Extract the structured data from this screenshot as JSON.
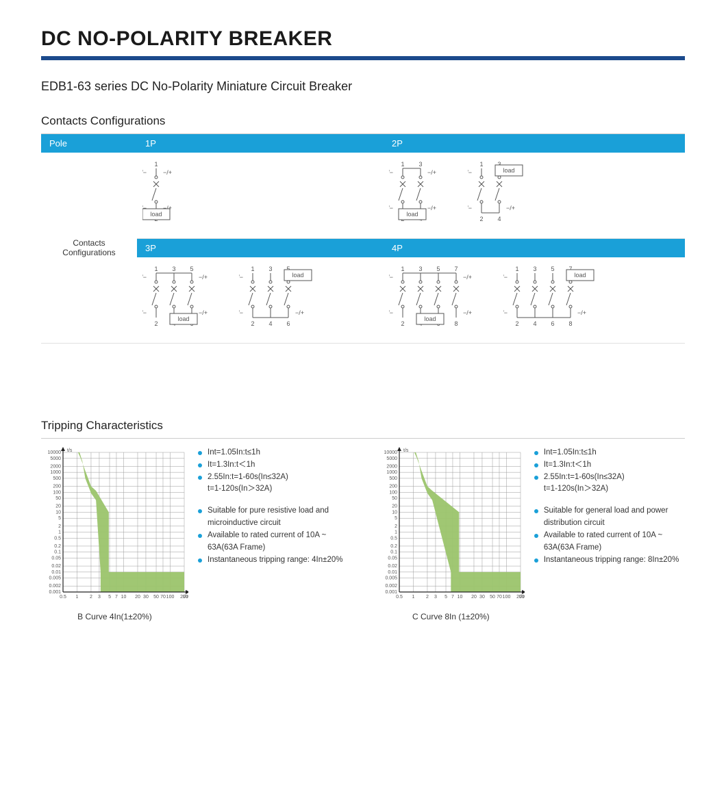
{
  "title": "DC NO-POLARITY BREAKER",
  "title_rule_color": "#1b4a8c",
  "subtitle": "EDB1-63 series DC No-Polarity  Miniature Circuit Breaker",
  "contacts": {
    "heading": "Contacts  Configurations",
    "header_bg": "#1aa0d8",
    "pole_label": "Pole",
    "row_label": "Contacts Configurations",
    "cols_top": [
      "1P",
      "2P"
    ],
    "cols_bot": [
      "3P",
      "4P"
    ],
    "load_label": "load",
    "plus_minus": "+/−",
    "minus_plus": "−/+",
    "diagrams": {
      "1P": {
        "poles": 1,
        "variants": 1
      },
      "2P": {
        "poles": 2,
        "variants": 2
      },
      "3P": {
        "poles": 3,
        "variants": 2
      },
      "4P": {
        "poles": 4,
        "variants": 2
      }
    }
  },
  "tripping": {
    "heading": "Tripping Characteristics",
    "y_label": "t/s",
    "x_label": "I/In",
    "y_ticks": [
      "10000",
      "5000",
      "2000",
      "1000",
      "500",
      "200",
      "100",
      "50",
      "20",
      "10",
      "5",
      "2",
      "1",
      "0.5",
      "0.2",
      "0.1",
      "0.05",
      "0.02",
      "0.01",
      "0.005",
      "0.002",
      "0.001"
    ],
    "x_ticks": [
      "0.5",
      "1",
      "2",
      "3",
      "5",
      "7",
      "10",
      "20",
      "30",
      "50",
      "70",
      "100",
      "200"
    ],
    "grid_color": "#999",
    "curve_color": "#9bc46b",
    "charts": [
      {
        "caption": "B Curve 4In(1±20%)",
        "band_lo_x": 3.2,
        "band_hi_x": 4.8,
        "notes_top": [
          "Int=1.05In:t≤1h",
          "It=1.3In:t＜1h",
          "2.55In:t=1-60s(In≤32A)",
          "t=1-120s(In＞32A)"
        ],
        "notes_bot": [
          "Suitable for pure resistive load and microinductive circuit",
          "Available to rated current of 10A ~ 63A(63A Frame)",
          "Instantaneous tripping range: 4In±20%"
        ]
      },
      {
        "caption": "C Curve 8In (1±20%)",
        "band_lo_x": 6.4,
        "band_hi_x": 9.6,
        "notes_top": [
          "Int=1.05In:t≤1h",
          "It=1.3In:t＜1h",
          "2.55In:t=1-60s(In≤32A)",
          "t=1-120s(In＞32A)"
        ],
        "notes_bot": [
          "Suitable for general load and power distribution circuit",
          "Available to rated current of 10A ~ 63A(63A Frame)",
          "Instantaneous tripping range: 8In±20%"
        ]
      }
    ]
  }
}
